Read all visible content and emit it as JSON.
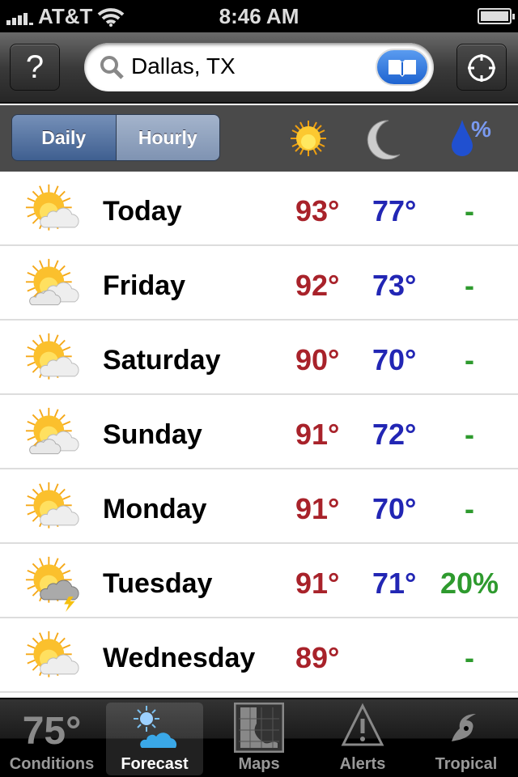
{
  "status": {
    "carrier": "AT&T",
    "time": "8:46 AM"
  },
  "navbar": {
    "help_label": "?",
    "search_value": "Dallas, TX"
  },
  "subbar": {
    "segments": [
      "Daily",
      "Hourly"
    ],
    "selected": "Daily",
    "columns": [
      "high-sun-icon",
      "low-moon-icon",
      "precip-drop-icon"
    ],
    "precip_symbol": "%"
  },
  "forecast": [
    {
      "day": "Today",
      "high": "93°",
      "low": "77°",
      "precip": "-",
      "icon": "partly-sunny"
    },
    {
      "day": "Friday",
      "high": "92°",
      "low": "73°",
      "precip": "-",
      "icon": "partly-cloudy"
    },
    {
      "day": "Saturday",
      "high": "90°",
      "low": "70°",
      "precip": "-",
      "icon": "partly-sunny"
    },
    {
      "day": "Sunday",
      "high": "91°",
      "low": "72°",
      "precip": "-",
      "icon": "partly-cloudy"
    },
    {
      "day": "Monday",
      "high": "91°",
      "low": "70°",
      "precip": "-",
      "icon": "partly-sunny"
    },
    {
      "day": "Tuesday",
      "high": "91°",
      "low": "71°",
      "precip": "20%",
      "icon": "thunderstorm"
    },
    {
      "day": "Wednesday",
      "high": "89°",
      "low": "",
      "precip": "-",
      "icon": "partly-sunny"
    }
  ],
  "tabs": [
    {
      "label": "Conditions",
      "value": "75°"
    },
    {
      "label": "Forecast"
    },
    {
      "label": "Maps"
    },
    {
      "label": "Alerts"
    },
    {
      "label": "Tropical"
    }
  ],
  "active_tab": "Forecast",
  "colors": {
    "high": "#a8222a",
    "low": "#2226b4",
    "precip": "#2e9a2e"
  }
}
